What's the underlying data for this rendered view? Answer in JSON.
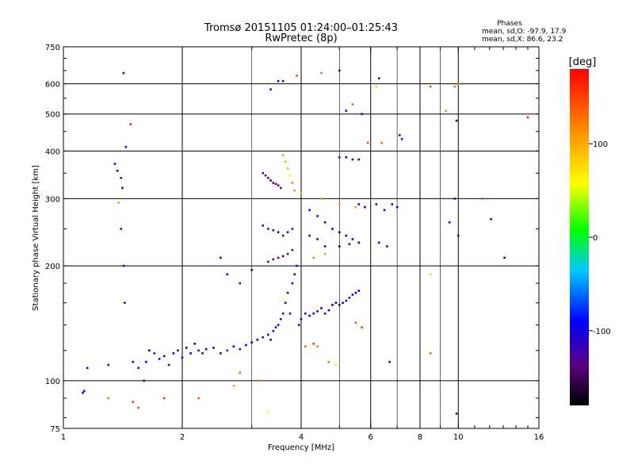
{
  "chart_data": {
    "type": "scatter",
    "title": "Tromsø 20151105 01:24:00–01:25:43",
    "subtitle": "RwPretec (8p)",
    "xlabel": "Frequency [MHz]",
    "ylabel": "Stationary phase Virtual Height [km]",
    "x_scale": "log",
    "y_scale": "log",
    "xlim": [
      1,
      16
    ],
    "ylim": [
      75,
      750
    ],
    "x_ticks": [
      1,
      2,
      4,
      6,
      8,
      10,
      16
    ],
    "x_minor_ticks": [
      3,
      5,
      7,
      9
    ],
    "y_ticks": [
      75,
      100,
      200,
      300,
      400,
      500,
      600,
      750
    ],
    "grid": true,
    "phases_info": {
      "heading": "Phases",
      "lines": [
        "mean, sd,O: -97.9, 17.9",
        "mean, sd,X:  86.6, 23.2"
      ]
    },
    "colorbar": {
      "label": "[deg]",
      "min": -180,
      "max": 180,
      "ticks": [
        100,
        0,
        -100
      ]
    },
    "series": [
      {
        "points": [
          [
            1.12,
            93,
            -110
          ],
          [
            1.13,
            94,
            -100
          ],
          [
            1.15,
            108,
            -120
          ],
          [
            1.3,
            110,
            -100
          ],
          [
            1.35,
            370,
            -100
          ],
          [
            1.37,
            355,
            -110
          ],
          [
            1.4,
            340,
            -120
          ],
          [
            1.41,
            320,
            -100
          ],
          [
            1.4,
            250,
            -100
          ],
          [
            1.42,
            200,
            -120
          ],
          [
            1.43,
            160,
            -110
          ],
          [
            1.42,
            640,
            -120
          ],
          [
            1.44,
            410,
            -100
          ],
          [
            1.48,
            470,
            170
          ],
          [
            1.5,
            112,
            -100
          ],
          [
            1.55,
            108,
            -120
          ],
          [
            1.6,
            100,
            -110
          ],
          [
            1.62,
            112,
            -90
          ],
          [
            1.65,
            120,
            -100
          ],
          [
            1.7,
            118,
            -80
          ],
          [
            1.75,
            114,
            -110
          ],
          [
            1.8,
            116,
            -100
          ],
          [
            1.85,
            110,
            -120
          ],
          [
            1.9,
            118,
            -90
          ],
          [
            1.95,
            120,
            -100
          ],
          [
            2.0,
            115,
            -110
          ],
          [
            2.05,
            122,
            -100
          ],
          [
            2.1,
            118,
            -90
          ],
          [
            2.15,
            125,
            -100
          ],
          [
            2.2,
            120,
            -120
          ],
          [
            2.25,
            118,
            -110
          ],
          [
            2.3,
            121,
            -100
          ],
          [
            2.4,
            122,
            -90
          ],
          [
            2.5,
            118,
            -100
          ],
          [
            2.6,
            120,
            -80
          ],
          [
            2.7,
            123,
            -100
          ],
          [
            2.8,
            121,
            -110
          ],
          [
            2.9,
            124,
            -100
          ],
          [
            3.0,
            126,
            -90
          ],
          [
            3.1,
            128,
            -100
          ],
          [
            3.2,
            130,
            -110
          ],
          [
            3.3,
            132,
            -100
          ],
          [
            3.35,
            128,
            -90
          ],
          [
            3.4,
            135,
            -100
          ],
          [
            3.45,
            138,
            -110
          ],
          [
            3.5,
            140,
            -100
          ],
          [
            3.55,
            145,
            -120
          ],
          [
            3.6,
            150,
            -100
          ],
          [
            3.65,
            160,
            -110
          ],
          [
            3.7,
            170,
            -100
          ],
          [
            3.75,
            150,
            -90
          ],
          [
            3.8,
            180,
            -100
          ],
          [
            3.85,
            190,
            -110
          ],
          [
            3.9,
            200,
            -100
          ],
          [
            3.95,
            140,
            -100
          ],
          [
            4.0,
            145,
            -110
          ],
          [
            4.1,
            150,
            -100
          ],
          [
            4.2,
            148,
            -90
          ],
          [
            4.3,
            150,
            -100
          ],
          [
            4.4,
            152,
            -120
          ],
          [
            4.5,
            155,
            -100
          ],
          [
            4.6,
            150,
            -110
          ],
          [
            4.7,
            153,
            -100
          ],
          [
            4.8,
            158,
            -90
          ],
          [
            4.9,
            160,
            -100
          ],
          [
            5.0,
            158,
            -110
          ],
          [
            5.1,
            160,
            -100
          ],
          [
            5.2,
            162,
            -120
          ],
          [
            5.3,
            165,
            -100
          ],
          [
            5.4,
            168,
            -110
          ],
          [
            5.5,
            170,
            -100
          ],
          [
            5.6,
            172,
            -90
          ],
          [
            3.2,
            350,
            -140
          ],
          [
            3.25,
            345,
            -130
          ],
          [
            3.3,
            340,
            -140
          ],
          [
            3.35,
            335,
            -150
          ],
          [
            3.4,
            330,
            -140
          ],
          [
            3.45,
            328,
            -130
          ],
          [
            3.5,
            325,
            -140
          ],
          [
            3.55,
            320,
            -130
          ],
          [
            3.2,
            255,
            -140
          ],
          [
            3.3,
            250,
            -130
          ],
          [
            3.4,
            248,
            -140
          ],
          [
            3.5,
            245,
            -150
          ],
          [
            3.6,
            240,
            -140
          ],
          [
            3.7,
            245,
            -130
          ],
          [
            3.8,
            250,
            -140
          ],
          [
            3.3,
            205,
            -140
          ],
          [
            3.4,
            208,
            -130
          ],
          [
            3.5,
            210,
            -140
          ],
          [
            3.6,
            212,
            -150
          ],
          [
            3.7,
            215,
            -140
          ],
          [
            3.8,
            220,
            -130
          ],
          [
            3.6,
            390,
            110
          ],
          [
            3.65,
            375,
            100
          ],
          [
            3.7,
            360,
            90
          ],
          [
            3.75,
            345,
            60
          ],
          [
            3.8,
            330,
            120
          ],
          [
            3.85,
            315,
            110
          ],
          [
            4.0,
            310,
            100
          ],
          [
            4.5,
            300,
            110
          ],
          [
            5.0,
            290,
            100
          ],
          [
            5.5,
            285,
            110
          ],
          [
            4.2,
            280,
            -100
          ],
          [
            4.4,
            270,
            -110
          ],
          [
            4.6,
            260,
            -100
          ],
          [
            4.8,
            250,
            -90
          ],
          [
            5.0,
            245,
            -100
          ],
          [
            5.2,
            240,
            -110
          ],
          [
            5.4,
            235,
            -100
          ],
          [
            5.6,
            230,
            -90
          ],
          [
            4.2,
            240,
            -120
          ],
          [
            4.4,
            235,
            -110
          ],
          [
            4.6,
            225,
            -100
          ],
          [
            5.0,
            225,
            -110
          ],
          [
            5.3,
            228,
            -100
          ],
          [
            5.6,
            230,
            -120
          ],
          [
            4.3,
            210,
            120
          ],
          [
            4.6,
            215,
            110
          ],
          [
            5.0,
            385,
            -120
          ],
          [
            5.2,
            385,
            -110
          ],
          [
            5.4,
            380,
            -120
          ],
          [
            5.6,
            380,
            -100
          ],
          [
            5.6,
            290,
            -100
          ],
          [
            5.8,
            285,
            -110
          ],
          [
            6.2,
            290,
            -100
          ],
          [
            6.5,
            280,
            -120
          ],
          [
            6.8,
            290,
            -110
          ],
          [
            7.0,
            285,
            -100
          ],
          [
            6.3,
            230,
            -100
          ],
          [
            6.6,
            225,
            -110
          ],
          [
            6.3,
            620,
            -100
          ],
          [
            6.2,
            590,
            40
          ],
          [
            7.2,
            430,
            -100
          ],
          [
            8.5,
            590,
            150
          ],
          [
            9.3,
            510,
            110
          ],
          [
            9.8,
            590,
            130
          ],
          [
            10,
            600,
            130
          ],
          [
            9.9,
            480,
            -110
          ],
          [
            9.8,
            300,
            -110
          ],
          [
            9.5,
            260,
            -110
          ],
          [
            10.0,
            240,
            -110
          ],
          [
            11.5,
            300,
            140
          ],
          [
            12.1,
            265,
            -110
          ],
          [
            13.1,
            210,
            -110
          ],
          [
            15.0,
            490,
            160
          ],
          [
            8.5,
            190,
            40
          ],
          [
            8.5,
            118,
            140
          ],
          [
            9.9,
            82,
            -120
          ],
          [
            3.35,
            580,
            -110
          ],
          [
            3.5,
            610,
            -110
          ],
          [
            3.6,
            610,
            -110
          ],
          [
            3.9,
            630,
            150
          ],
          [
            4.5,
            640,
            130
          ],
          [
            5.0,
            650,
            -110
          ],
          [
            5.2,
            510,
            -100
          ],
          [
            5.4,
            530,
            130
          ],
          [
            5.7,
            500,
            -100
          ],
          [
            5.9,
            420,
            140
          ],
          [
            6.4,
            420,
            130
          ],
          [
            7.1,
            440,
            -110
          ],
          [
            2.5,
            210,
            -110
          ],
          [
            2.6,
            190,
            -100
          ],
          [
            2.8,
            180,
            -110
          ],
          [
            3.0,
            195,
            -110
          ],
          [
            4.1,
            123,
            130
          ],
          [
            4.3,
            125,
            150
          ],
          [
            4.4,
            123,
            130
          ],
          [
            5.5,
            142,
            140
          ],
          [
            5.7,
            138,
            150
          ],
          [
            4.7,
            112,
            130
          ],
          [
            4.9,
            110,
            50
          ],
          [
            2.8,
            105,
            140
          ],
          [
            3.1,
            100,
            120
          ],
          [
            2.2,
            90,
            140
          ],
          [
            1.8,
            90,
            160
          ],
          [
            1.5,
            88,
            160
          ],
          [
            1.3,
            90,
            130
          ],
          [
            1.55,
            85,
            150
          ],
          [
            3.3,
            83,
            60
          ],
          [
            2.7,
            97,
            100
          ],
          [
            1.38,
            293,
            110
          ],
          [
            6.7,
            112,
            -110
          ]
        ]
      }
    ]
  }
}
